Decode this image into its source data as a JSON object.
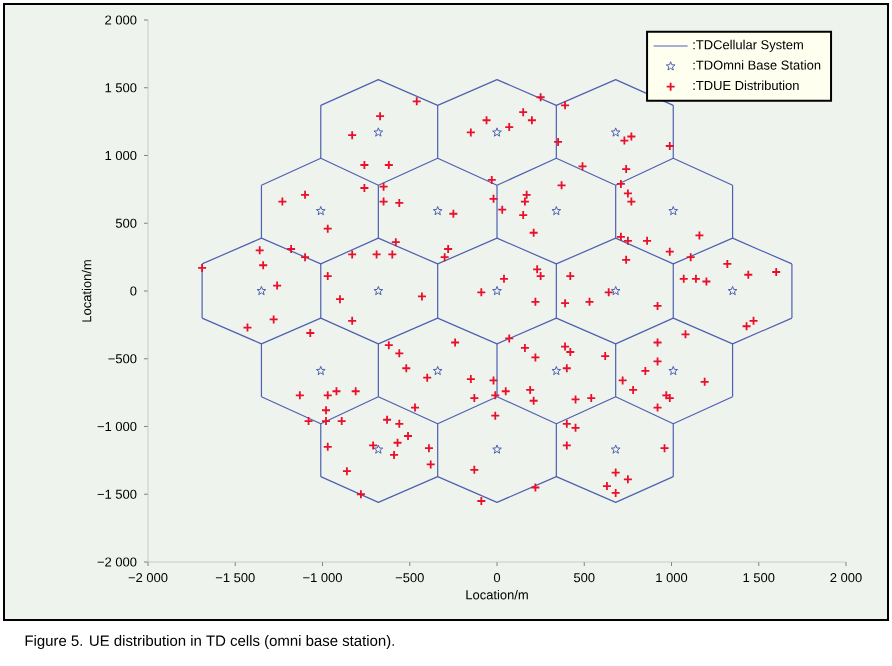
{
  "chart_data": {
    "type": "scatter",
    "xlabel": "Location/m",
    "ylabel": "Location/m",
    "legend": "top right",
    "annotations": [
      "Figure 5. UE distribution in TD cells (omni base station)."
    ],
    "xlim": [
      -2000,
      2000
    ],
    "ylim": [
      -2000,
      2000
    ],
    "xticks": [
      {
        "value": -2000,
        "label": "−2 000"
      },
      {
        "value": -1500,
        "label": "−1 500"
      },
      {
        "value": -1000,
        "label": "−1 000"
      },
      {
        "value": -500,
        "label": "−500"
      },
      0,
      500,
      {
        "value": 1000,
        "label": "1 000"
      },
      {
        "value": 1500,
        "label": "1 500"
      },
      {
        "value": 2000,
        "label": "2 000"
      }
    ],
    "yticks": [
      {
        "value": -2000,
        "label": "−2 000"
      },
      {
        "value": -1500,
        "label": "−1 500"
      },
      {
        "value": -1000,
        "label": "−1 000"
      },
      {
        "value": -500,
        "label": "−500"
      },
      0,
      500,
      {
        "value": 1000,
        "label": "1 000"
      },
      {
        "value": 1500,
        "label": "1 500"
      },
      {
        "value": 2000,
        "label": "2 000"
      }
    ],
    "series": [
      {
        "name": ":TDCellular System",
        "type": "line",
        "color": "#5060b0",
        "line_style": "solid",
        "x": [
          -1010,
          -680,
          -340,
          0,
          340,
          680,
          1010
        ],
        "values": [
          1370,
          1560,
          1370,
          1560,
          1370,
          1560,
          1370
        ]
      },
      {
        "type": "line",
        "color": "#5060b0",
        "line_style": "solid",
        "x": [
          -1350,
          -1010,
          -680,
          -340,
          0,
          340,
          680,
          1010,
          1350
        ],
        "values": [
          780,
          980,
          780,
          980,
          780,
          980,
          780,
          980,
          780
        ]
      },
      {
        "type": "line",
        "color": "#5060b0",
        "line_style": "solid",
        "x": [
          -1690,
          -1350,
          -1010,
          -680,
          -340,
          0,
          340,
          680,
          1010,
          1350,
          1690
        ],
        "values": [
          200,
          390,
          200,
          390,
          200,
          390,
          200,
          390,
          200,
          390,
          200
        ]
      },
      {
        "type": "line",
        "color": "#5060b0",
        "line_style": "solid",
        "x": [
          -1690,
          -1350,
          -1010,
          -680,
          -340,
          0,
          340,
          680,
          1010,
          1350,
          1690
        ],
        "values": [
          -200,
          -390,
          -200,
          -390,
          -200,
          -390,
          -200,
          -390,
          -200,
          -390,
          -200
        ]
      },
      {
        "type": "line",
        "color": "#5060b0",
        "line_style": "solid",
        "x": [
          -1350,
          -1010,
          -680,
          -340,
          0,
          340,
          680,
          1010,
          1350
        ],
        "values": [
          -780,
          -980,
          -780,
          -980,
          -780,
          -980,
          -780,
          -980,
          -780
        ]
      },
      {
        "type": "line",
        "color": "#5060b0",
        "line_style": "solid",
        "x": [
          -1010,
          -680,
          -340,
          0,
          340,
          680,
          1010
        ],
        "values": [
          -1370,
          -1560,
          -1370,
          -1560,
          -1370,
          -1560,
          -1370
        ]
      },
      {
        "type": "line",
        "color": "#5060b0",
        "line_style": "solid",
        "x": [
          -1010,
          -1010,
          null,
          -340,
          -340,
          null,
          340,
          340,
          null,
          1010,
          1010
        ],
        "values": [
          980,
          1370,
          null,
          980,
          1370,
          null,
          980,
          1370,
          null,
          980,
          1370
        ]
      },
      {
        "type": "line",
        "color": "#5060b0",
        "line_style": "solid",
        "x": [
          -1350,
          -1350,
          null,
          -680,
          -680,
          null,
          0,
          0,
          null,
          680,
          680,
          null,
          1350,
          1350
        ],
        "values": [
          390,
          780,
          null,
          390,
          780,
          null,
          390,
          780,
          null,
          390,
          780,
          null,
          390,
          780
        ]
      },
      {
        "type": "line",
        "color": "#5060b0",
        "line_style": "solid",
        "x": [
          -1690,
          -1690,
          null,
          -1010,
          -1010,
          null,
          -340,
          -340,
          null,
          340,
          340,
          null,
          1010,
          1010,
          null,
          1690,
          1690
        ],
        "values": [
          -200,
          200,
          null,
          -200,
          200,
          null,
          -200,
          200,
          null,
          -200,
          200,
          null,
          -200,
          200,
          null,
          -200,
          200
        ]
      },
      {
        "type": "line",
        "color": "#5060b0",
        "line_style": "solid",
        "x": [
          -1350,
          -1350,
          null,
          -680,
          -680,
          null,
          0,
          0,
          null,
          680,
          680,
          null,
          1350,
          1350
        ],
        "values": [
          -780,
          -390,
          null,
          -780,
          -390,
          null,
          -780,
          -390,
          null,
          -780,
          -390,
          null,
          -780,
          -390
        ]
      },
      {
        "type": "line",
        "color": "#5060b0",
        "line_style": "solid",
        "x": [
          -1010,
          -1010,
          null,
          -340,
          -340,
          null,
          340,
          340,
          null,
          1010,
          1010
        ],
        "values": [
          -1370,
          -980,
          null,
          -1370,
          -980,
          null,
          -1370,
          -980,
          null,
          -1370,
          -980
        ]
      },
      {
        "name": ":TDOmni Base Station",
        "marker": "star",
        "color": "#5060b0",
        "x": [
          -680,
          0,
          680,
          -1010,
          -340,
          340,
          1010,
          -1350,
          -680,
          0,
          680,
          1350,
          -1010,
          -340,
          340,
          1010,
          -680,
          0,
          680
        ],
        "values": [
          1170,
          1170,
          1170,
          590,
          590,
          590,
          590,
          0,
          0,
          0,
          0,
          0,
          -590,
          -590,
          -590,
          -590,
          -1170,
          -1170,
          -1170
        ]
      },
      {
        "name": ":TDUE Distribution",
        "marker": "cross",
        "color": "#e8102a",
        "x": [
          -670,
          -460,
          -830,
          -760,
          -620,
          -60,
          -150,
          70,
          150,
          200,
          250,
          390,
          350,
          730,
          770,
          990,
          490,
          740,
          -1230,
          -1100,
          -970,
          -760,
          -650,
          -650,
          -560,
          -250,
          -30,
          -20,
          30,
          160,
          170,
          150,
          210,
          370,
          710,
          750,
          770,
          710,
          750,
          860,
          990,
          1160,
          -580,
          -1690,
          -1360,
          -1340,
          -1180,
          -1100,
          -1260,
          -1280,
          -1430,
          -1070,
          -970,
          -830,
          -690,
          -600,
          -900,
          -830,
          -430,
          -300,
          -280,
          -90,
          40,
          230,
          250,
          220,
          390,
          420,
          530,
          640,
          920,
          740,
          1110,
          1070,
          1140,
          1200,
          1320,
          1440,
          1600,
          1470,
          1430,
          1080,
          -620,
          -560,
          -520,
          -400,
          -240,
          70,
          160,
          220,
          390,
          420,
          400,
          620,
          920,
          -1130,
          -970,
          -920,
          -810,
          -980,
          -1080,
          -980,
          -890,
          -630,
          -560,
          -510,
          -570,
          -710,
          -590,
          -390,
          -380,
          -970,
          -860,
          -780,
          -470,
          -150,
          -20,
          -10,
          50,
          -130,
          190,
          210,
          450,
          540,
          400,
          450,
          400,
          -10,
          -130,
          220,
          -90,
          720,
          780,
          850,
          920,
          970,
          990,
          920,
          1190,
          960,
          680,
          750,
          680,
          630
        ],
        "values": [
          1290,
          1400,
          1150,
          930,
          930,
          1260,
          1170,
          1210,
          1320,
          1260,
          1430,
          1370,
          1100,
          1110,
          1140,
          1070,
          920,
          900,
          660,
          710,
          460,
          760,
          770,
          660,
          650,
          570,
          820,
          680,
          600,
          660,
          710,
          560,
          430,
          780,
          790,
          720,
          660,
          400,
          370,
          370,
          290,
          410,
          360,
          170,
          300,
          190,
          310,
          250,
          40,
          -210,
          -270,
          -310,
          110,
          270,
          270,
          270,
          -60,
          -220,
          -40,
          250,
          310,
          -10,
          90,
          160,
          110,
          -80,
          -90,
          110,
          -80,
          -10,
          -110,
          230,
          250,
          90,
          90,
          70,
          200,
          120,
          140,
          -220,
          -260,
          -320,
          -400,
          -460,
          -570,
          -640,
          -380,
          -350,
          -420,
          -490,
          -410,
          -450,
          -570,
          -480,
          -380,
          -770,
          -770,
          -740,
          -740,
          -880,
          -960,
          -960,
          -960,
          -950,
          -980,
          -1070,
          -1120,
          -1140,
          -1210,
          -1160,
          -1280,
          -1150,
          -1330,
          -1500,
          -860,
          -650,
          -660,
          -770,
          -740,
          -790,
          -730,
          -810,
          -800,
          -790,
          -980,
          -1010,
          -1140,
          -920,
          -1320,
          -1450,
          -1550,
          -660,
          -730,
          -590,
          -520,
          -770,
          -790,
          -860,
          -670,
          -1160,
          -1340,
          -1390,
          -1490,
          -1440
        ]
      }
    ]
  }
}
